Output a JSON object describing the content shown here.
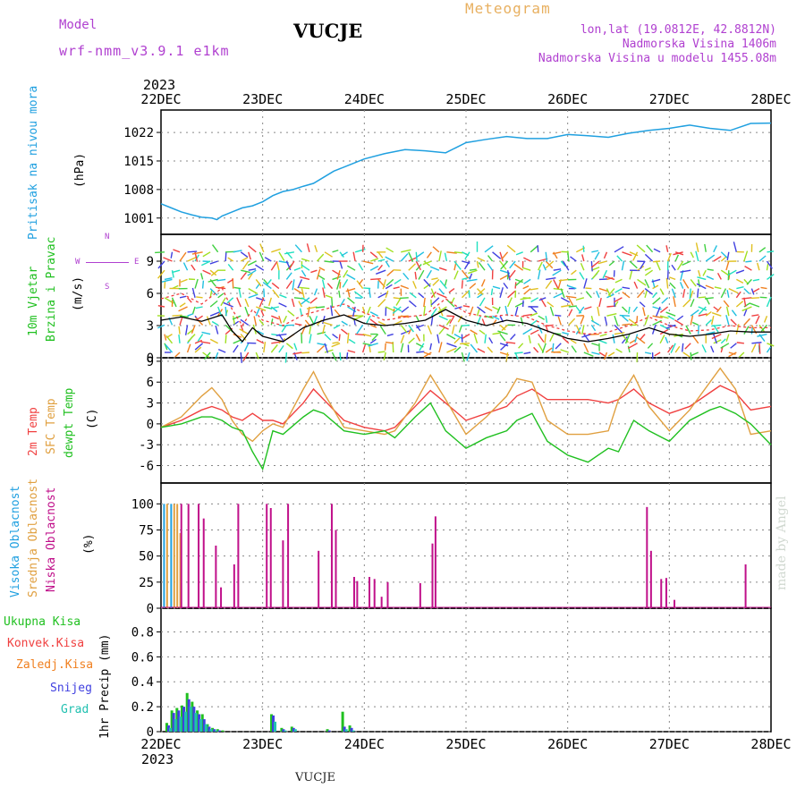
{
  "header": {
    "title": "VUCJE",
    "model_label": "Model",
    "model_name": "wrf-nmm_v3.9.1 e1km",
    "meteogram": "Meteogram",
    "lonlat": "lon,lat (19.0812E, 42.8812N)",
    "altitude": "Nadmorska Visina 1406m",
    "model_altitude": "Nadmorska Visina u modelu 1455.08m",
    "year_top": "2023",
    "year_bottom": "2023",
    "footer": "VUCJE",
    "made_by": "made by Angel"
  },
  "colors": {
    "pressure": "#20a0e0",
    "temp2m": "#f04040",
    "sfc": "#e0a040",
    "dewpt": "#20c020",
    "high_cloud": "#20a0e0",
    "mid_cloud": "#e0a040",
    "low_cloud": "#c0108a",
    "precip_total": "#20c020",
    "precip_conv": "#f04040",
    "precip_frozen": "#f08020",
    "snow": "#4040e0",
    "graupel": "#20c0b0",
    "wind_legend": "#b040d0"
  },
  "labels": {
    "pressure": [
      "Pritisak na nivou mora",
      "(hPa)"
    ],
    "wind": [
      "10m Vjetar",
      "Brzina i Pravac",
      "(m/s)"
    ],
    "wind_rose": [
      "N",
      "W",
      "E",
      "S"
    ],
    "temp": [
      "2m Temp",
      "SFC Temp",
      "dewpt Temp",
      "(C)"
    ],
    "cloud": [
      "Visoka Oblacnost",
      "Srednja Oblacnost",
      "Niska Oblacnost",
      "(%)"
    ],
    "precip_legend": [
      "Ukupna Kisa",
      "Konvek.Kisa",
      "Zaledj.Kisa",
      "Snijeg",
      "Grad"
    ],
    "precip_axis": "1hr Precip (mm)"
  },
  "chart_data": [
    {
      "type": "line",
      "panel": "pressure",
      "x_days": [
        0,
        0.1,
        0.2,
        0.3,
        0.4,
        0.5,
        0.55,
        0.6,
        0.7,
        0.8,
        0.9,
        1.0,
        1.1,
        1.2,
        1.3,
        1.4,
        1.5,
        1.6,
        1.7,
        1.8,
        2.0,
        2.2,
        2.4,
        2.6,
        2.8,
        3.0,
        3.2,
        3.4,
        3.6,
        3.8,
        4.0,
        4.2,
        4.4,
        4.6,
        4.8,
        5.0,
        5.2,
        5.4,
        5.6,
        5.8,
        6.0
      ],
      "values": [
        1004.5,
        1003.5,
        1002.5,
        1001.8,
        1001.2,
        1001.0,
        1000.6,
        1001.5,
        1002.5,
        1003.5,
        1004.0,
        1005.0,
        1006.5,
        1007.5,
        1008.0,
        1008.8,
        1009.5,
        1011.0,
        1012.5,
        1013.5,
        1015.5,
        1016.8,
        1017.8,
        1017.5,
        1017.0,
        1019.5,
        1020.3,
        1021.0,
        1020.5,
        1020.5,
        1021.5,
        1021.2,
        1020.8,
        1021.8,
        1022.5,
        1023.0,
        1023.8,
        1023.0,
        1022.5,
        1024.2,
        1024.3
      ],
      "ylabel": "(hPa)",
      "yticks": [
        1001,
        1008,
        1015,
        1022
      ]
    },
    {
      "type": "line",
      "panel": "wind",
      "x_days": [
        0,
        0.2,
        0.4,
        0.6,
        0.7,
        0.8,
        0.9,
        1.0,
        1.2,
        1.4,
        1.6,
        1.8,
        2.0,
        2.2,
        2.4,
        2.6,
        2.8,
        3.0,
        3.2,
        3.4,
        3.6,
        3.8,
        4.0,
        4.2,
        4.4,
        4.6,
        4.8,
        5.0,
        5.2,
        5.4,
        5.6,
        5.8,
        6.0
      ],
      "series": [
        {
          "values": [
            3.5,
            3.8,
            3.4,
            4.0,
            2.5,
            1.5,
            2.8,
            2.0,
            1.5,
            2.8,
            3.5,
            4.0,
            3.2,
            3.0,
            3.2,
            3.5,
            4.5,
            3.5,
            3.0,
            3.5,
            3.2,
            2.5,
            1.8,
            1.5,
            1.8,
            2.2,
            2.8,
            2.2,
            2.0,
            2.2,
            2.5,
            2.4,
            2.4
          ]
        },
        {
          "values": [
            5.5,
            6.0,
            5.0,
            6.5,
            4.5,
            3.0,
            4.5,
            3.5,
            3.0,
            4.0,
            4.5,
            5.0,
            4.2,
            3.5,
            3.8,
            4.0,
            5.5,
            4.2,
            3.8,
            4.0,
            3.8,
            3.0,
            2.5,
            2.2,
            2.4,
            3.0,
            3.8,
            3.0,
            2.5,
            2.6,
            3.0,
            2.8,
            2.8
          ]
        }
      ],
      "ylabel": "(m/s)",
      "yticks": [
        0,
        3,
        6,
        9
      ]
    },
    {
      "type": "line",
      "panel": "temperature",
      "x_days": [
        0,
        0.2,
        0.4,
        0.5,
        0.6,
        0.7,
        0.8,
        0.9,
        1.0,
        1.1,
        1.2,
        1.4,
        1.5,
        1.6,
        1.8,
        2.0,
        2.2,
        2.3,
        2.5,
        2.65,
        2.8,
        3.0,
        3.2,
        3.4,
        3.5,
        3.65,
        3.8,
        4.0,
        4.2,
        4.4,
        4.5,
        4.65,
        4.8,
        5.0,
        5.2,
        5.4,
        5.5,
        5.65,
        5.8,
        6.0
      ],
      "series": [
        {
          "name": "2m Temp",
          "values": [
            -0.5,
            0.5,
            2.0,
            2.5,
            2.0,
            1.0,
            0.5,
            1.5,
            0.5,
            0.5,
            0.0,
            3.0,
            5.0,
            3.5,
            0.5,
            -0.5,
            -1.0,
            -0.5,
            2.5,
            4.8,
            3.0,
            0.5,
            1.5,
            2.5,
            4.0,
            5.0,
            3.5,
            3.5,
            3.5,
            3.0,
            3.5,
            5.0,
            3.0,
            1.5,
            2.5,
            4.5,
            5.5,
            4.5,
            2.0,
            2.5
          ]
        },
        {
          "name": "SFC Temp",
          "values": [
            -0.5,
            1.0,
            4.0,
            5.2,
            3.5,
            0.5,
            -1.5,
            -2.5,
            -1.0,
            0.0,
            -0.5,
            5.0,
            7.5,
            4.5,
            -0.5,
            -1.0,
            -1.5,
            -1.0,
            3.0,
            7.0,
            3.5,
            -1.5,
            1.0,
            4.0,
            6.5,
            6.0,
            0.5,
            -1.5,
            -1.5,
            -1.0,
            3.5,
            7.0,
            2.5,
            -1.0,
            2.0,
            6.0,
            8.0,
            5.0,
            -1.5,
            -1.0
          ]
        },
        {
          "name": "dewpt Temp",
          "values": [
            -0.5,
            0.0,
            1.0,
            1.0,
            0.5,
            -0.5,
            -1.0,
            -4.0,
            -6.5,
            -1.0,
            -1.5,
            1.0,
            2.0,
            1.5,
            -1.0,
            -1.5,
            -1.0,
            -2.0,
            1.0,
            3.0,
            -1.0,
            -3.5,
            -2.0,
            -1.0,
            0.5,
            1.5,
            -2.5,
            -4.5,
            -5.5,
            -3.5,
            -4.0,
            0.5,
            -1.0,
            -2.5,
            0.5,
            2.0,
            2.5,
            1.5,
            0.0,
            -3.0
          ]
        }
      ],
      "ylabel": "(C)",
      "yticks": [
        -6,
        -3,
        0,
        3,
        6,
        9
      ]
    },
    {
      "type": "bar",
      "panel": "cloud",
      "series": [
        {
          "name": "Visoka Oblacnost",
          "x_days": [
            0.03,
            0.1
          ],
          "values": [
            100,
            100
          ]
        },
        {
          "name": "Srednja Oblacnost",
          "x_days": [
            0.06,
            0.13,
            0.16,
            0.19
          ],
          "values": [
            100,
            100,
            100,
            72
          ]
        },
        {
          "name": "Niska Oblacnost",
          "x_days": [
            0.2,
            0.27,
            0.37,
            0.42,
            0.54,
            0.59,
            0.72,
            0.76,
            1.04,
            1.08,
            1.2,
            1.25,
            1.55,
            1.68,
            1.72,
            1.9,
            1.93,
            2.05,
            2.1,
            2.17,
            2.23,
            2.55,
            2.67,
            2.7,
            4.78,
            4.82,
            4.92,
            4.97,
            5.05,
            5.75
          ],
          "values": [
            100,
            100,
            100,
            86,
            60,
            20,
            42,
            100,
            100,
            96,
            65,
            100,
            55,
            100,
            75,
            30,
            26,
            30,
            28,
            11,
            25,
            24,
            62,
            88,
            97,
            55,
            28,
            29,
            8,
            42
          ]
        }
      ],
      "ylabel": "(%)",
      "yticks": [
        0,
        25,
        50,
        75,
        100
      ]
    },
    {
      "type": "bar",
      "panel": "precipitation",
      "x_days": [
        0.07,
        0.12,
        0.17,
        0.22,
        0.27,
        0.32,
        0.37,
        0.42,
        0.47,
        0.52,
        0.57,
        0.62,
        1.1,
        1.2,
        1.3,
        1.65,
        1.8,
        1.87
      ],
      "series": [
        {
          "name": "Ukupna Kisa",
          "values": [
            0.07,
            0.17,
            0.19,
            0.21,
            0.31,
            0.24,
            0.17,
            0.14,
            0.06,
            0.03,
            0.02,
            0.01,
            0.14,
            0.03,
            0.04,
            0.02,
            0.16,
            0.05
          ]
        },
        {
          "name": "Snijeg",
          "values": [
            0.05,
            0.15,
            0.17,
            0.2,
            0.26,
            0.2,
            0.14,
            0.1,
            0.04,
            0.02,
            0.01,
            0.0,
            0.13,
            0.02,
            0.03,
            0.01,
            0.04,
            0.03
          ]
        },
        {
          "name": "Grad",
          "values": [
            0.03,
            0.1,
            0.12,
            0.16,
            0.2,
            0.15,
            0.1,
            0.06,
            0.02,
            0.01,
            0.0,
            0.0,
            0.08,
            0.01,
            0.02,
            0.0,
            0.02,
            0.01
          ]
        }
      ],
      "ylabel": "1hr Precip (mm)",
      "yticks": [
        0,
        0.2,
        0.4,
        0.6,
        0.8
      ]
    }
  ],
  "x_axis": {
    "labels": [
      "22DEC",
      "23DEC",
      "24DEC",
      "25DEC",
      "26DEC",
      "27DEC",
      "28DEC"
    ]
  }
}
